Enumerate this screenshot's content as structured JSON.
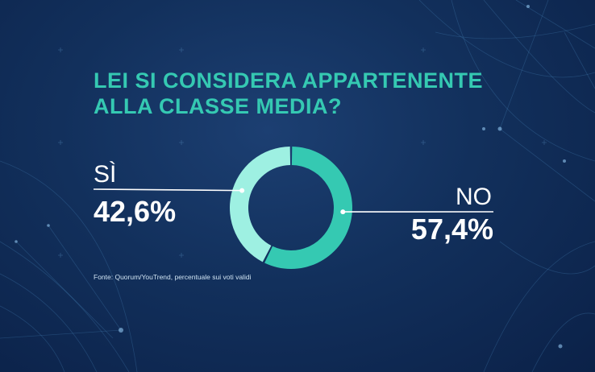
{
  "title": {
    "line1": "LEI SI CONSIDERA APPARTENENTE",
    "line2": "ALLA CLASSE MEDIA?"
  },
  "source": "Fonte: Quorum/YouTrend, percentuale sui voti validi",
  "colors": {
    "background": "#12305c",
    "accent": "#35c9b2",
    "light_teal": "#9ef0e2",
    "label": "#ffffff"
  },
  "chart_data": {
    "type": "pie",
    "style": "donut",
    "title": "LEI SI CONSIDERA APPARTENENTE ALLA CLASSE MEDIA?",
    "slices": [
      {
        "label": "SÌ",
        "value": 42.6,
        "value_label": "42,6%",
        "color": "#9ef0e2"
      },
      {
        "label": "NO",
        "value": 57.4,
        "value_label": "57,4%",
        "color": "#35c9b2"
      }
    ]
  }
}
